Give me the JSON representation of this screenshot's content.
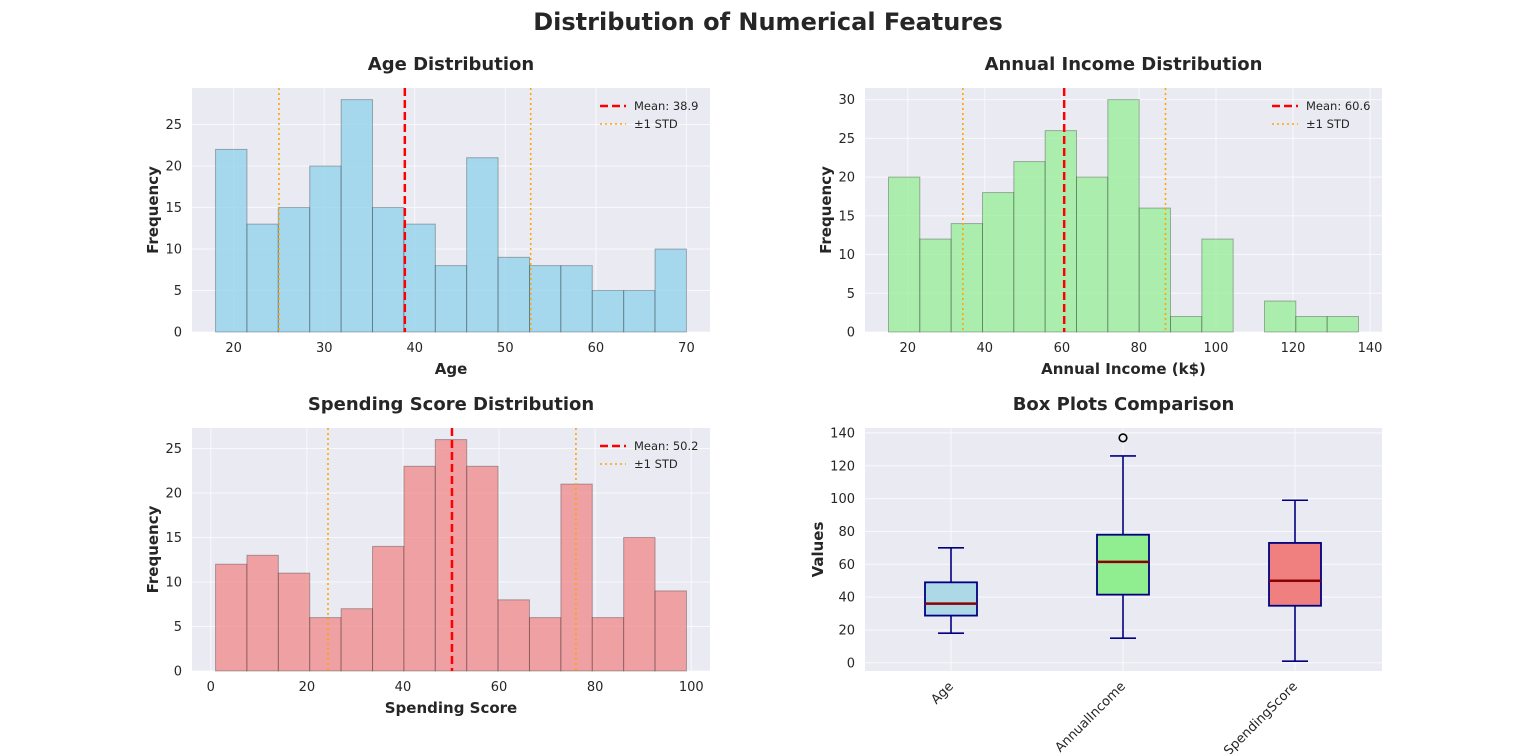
{
  "figure": {
    "suptitle": "Distribution of Numerical Features"
  },
  "chart_data": [
    {
      "type": "bar",
      "title": "Age Distribution",
      "xlabel": "Age",
      "ylabel": "Frequency",
      "bin_edges": [
        18,
        21.47,
        24.93,
        28.4,
        31.87,
        35.33,
        38.8,
        42.27,
        45.73,
        49.2,
        52.67,
        56.13,
        59.6,
        63.07,
        66.53,
        70
      ],
      "values": [
        22,
        13,
        15,
        20,
        28,
        15,
        13,
        8,
        21,
        9,
        8,
        8,
        5,
        5,
        10
      ],
      "xlim": [
        15.4,
        72.6
      ],
      "ylim": [
        0,
        29.4
      ],
      "xticks": [
        20,
        30,
        40,
        50,
        60,
        70
      ],
      "yticks": [
        0,
        5,
        10,
        15,
        20,
        25
      ],
      "mean": 38.9,
      "std_lines": [
        25.0,
        52.8
      ],
      "legend": [
        "Mean: 38.9",
        "±1 STD"
      ],
      "legend_position": "upper right",
      "bar_color": "#87CEEB",
      "grid": true
    },
    {
      "type": "bar",
      "title": "Annual Income Distribution",
      "xlabel": "Annual Income (k$)",
      "ylabel": "Frequency",
      "bin_edges": [
        15,
        23.13,
        31.27,
        39.4,
        47.53,
        55.67,
        63.8,
        71.93,
        80.07,
        88.2,
        96.33,
        104.47,
        112.6,
        120.73,
        128.87,
        137
      ],
      "values": [
        20,
        12,
        14,
        18,
        22,
        26,
        20,
        30,
        16,
        2,
        12,
        0,
        4,
        2,
        2
      ],
      "xlim": [
        8.9,
        143.1
      ],
      "ylim": [
        0,
        31.5
      ],
      "xticks": [
        20,
        40,
        60,
        80,
        100,
        120,
        140
      ],
      "yticks": [
        0,
        5,
        10,
        15,
        20,
        25,
        30
      ],
      "mean": 60.6,
      "std_lines": [
        34.3,
        86.9
      ],
      "legend": [
        "Mean: 60.6",
        "±1 STD"
      ],
      "legend_position": "upper right",
      "bar_color": "#90EE90",
      "grid": true
    },
    {
      "type": "bar",
      "title": "Spending Score Distribution",
      "xlabel": "Spending Score",
      "ylabel": "Frequency",
      "bin_edges": [
        1,
        7.53,
        14.07,
        20.6,
        27.13,
        33.67,
        40.2,
        46.73,
        53.27,
        59.8,
        66.33,
        72.87,
        79.4,
        85.93,
        92.47,
        99
      ],
      "values": [
        12,
        13,
        11,
        6,
        7,
        14,
        23,
        26,
        23,
        8,
        6,
        21,
        6,
        15,
        9
      ],
      "xlim": [
        -3.9,
        103.9
      ],
      "ylim": [
        0,
        27.3
      ],
      "xticks": [
        0,
        20,
        40,
        60,
        80,
        100
      ],
      "yticks": [
        0,
        5,
        10,
        15,
        20,
        25
      ],
      "mean": 50.2,
      "std_lines": [
        24.4,
        76.0
      ],
      "legend": [
        "Mean: 50.2",
        "±1 STD"
      ],
      "legend_position": "upper right",
      "bar_color": "#F08080",
      "grid": true
    },
    {
      "type": "box",
      "title": "Box Plots Comparison",
      "ylabel": "Values",
      "categories": [
        "Age",
        "AnnualIncome",
        "SpendingScore"
      ],
      "boxes": [
        {
          "whisker_low": 18,
          "q1": 28.75,
          "median": 36,
          "q3": 49,
          "whisker_high": 70,
          "fliers": [],
          "color": "#ADD8E6"
        },
        {
          "whisker_low": 15,
          "q1": 41.5,
          "median": 61.5,
          "q3": 78,
          "whisker_high": 126,
          "fliers": [
            137
          ],
          "color": "#90EE90"
        },
        {
          "whisker_low": 1,
          "q1": 34.75,
          "median": 50,
          "q3": 73,
          "whisker_high": 99,
          "fliers": [],
          "color": "#F08080"
        }
      ],
      "ylim": [
        -5,
        143
      ],
      "yticks": [
        0,
        20,
        40,
        60,
        80,
        100,
        120,
        140
      ],
      "grid": true
    }
  ]
}
